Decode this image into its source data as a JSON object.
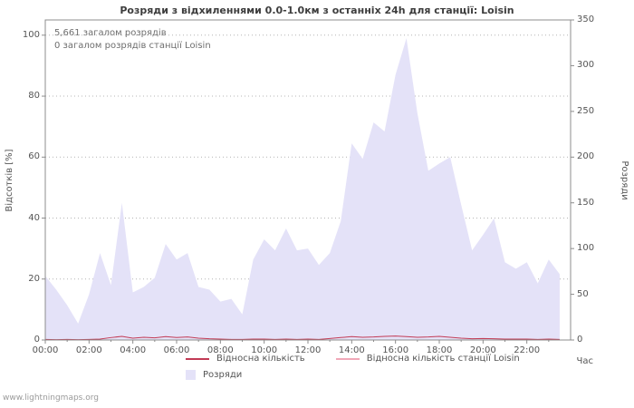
{
  "watermark": "www.lightningmaps.org",
  "chart_data": {
    "type": "area",
    "title": "Розряди з відхиленнями 0.0-1.0км з останніх 24h для станції: Loisin",
    "annotations": [
      "5,661 загалом розрядів",
      "0 загалом розрядів станції Loisin"
    ],
    "x_axis": {
      "label": "Час",
      "ticks": [
        "00:00",
        "02:00",
        "04:00",
        "06:00",
        "08:00",
        "10:00",
        "12:00",
        "14:00",
        "16:00",
        "18:00",
        "20:00",
        "22:00"
      ],
      "hours_max": 24
    },
    "left_axis": {
      "label": "Відсотків [%]",
      "ticks": [
        0,
        20,
        40,
        60,
        80,
        100
      ],
      "plot_max": 105
    },
    "right_axis": {
      "label": "Розряди",
      "ticks": [
        0,
        50,
        100,
        150,
        200,
        250,
        300,
        350
      ],
      "max": 350
    },
    "grid": "horizontal-dotted",
    "legend_position": "bottom",
    "frame_color": "#8c8c8c",
    "grid_color": "#b4b4b4",
    "x": [
      "00:00",
      "00:30",
      "01:00",
      "01:30",
      "02:00",
      "02:30",
      "03:00",
      "03:30",
      "04:00",
      "04:30",
      "05:00",
      "05:30",
      "06:00",
      "06:30",
      "07:00",
      "07:30",
      "08:00",
      "08:30",
      "09:00",
      "09:30",
      "10:00",
      "10:30",
      "11:00",
      "11:30",
      "12:00",
      "12:30",
      "13:00",
      "13:30",
      "14:00",
      "14:30",
      "15:00",
      "15:30",
      "16:00",
      "16:30",
      "17:00",
      "17:30",
      "18:00",
      "18:30",
      "19:00",
      "19:30",
      "20:00",
      "20:30",
      "21:00",
      "21:30",
      "22:00",
      "22:30",
      "23:00",
      "23:30"
    ],
    "series": [
      {
        "name": "Розряди",
        "type": "area",
        "axis": "right",
        "color": "#e4e2f8",
        "values": [
          70,
          55,
          38,
          18,
          50,
          95,
          60,
          150,
          52,
          58,
          68,
          105,
          88,
          95,
          58,
          55,
          42,
          45,
          28,
          88,
          110,
          98,
          122,
          98,
          100,
          82,
          95,
          130,
          215,
          198,
          238,
          228,
          290,
          330,
          248,
          185,
          193,
          200,
          148,
          98,
          115,
          133,
          85,
          78,
          85,
          62,
          88,
          72
        ]
      },
      {
        "name": "Відносна кількість",
        "type": "line",
        "axis": "left",
        "color": "#c23b55",
        "values": [
          0.2,
          0.1,
          0.2,
          0.1,
          0.2,
          0.3,
          0.8,
          1.2,
          0.6,
          0.9,
          0.7,
          1.1,
          0.8,
          1.0,
          0.6,
          0.4,
          0.3,
          0.2,
          0.2,
          0.3,
          0.3,
          0.2,
          0.3,
          0.2,
          0.3,
          0.2,
          0.5,
          0.8,
          1.1,
          0.9,
          1.0,
          1.2,
          1.3,
          1.1,
          0.9,
          1.0,
          1.2,
          0.9,
          0.6,
          0.4,
          0.5,
          0.4,
          0.3,
          0.3,
          0.3,
          0.2,
          0.3,
          0.2
        ]
      },
      {
        "name": "Відносна кількість станції Loisin",
        "type": "line",
        "axis": "left",
        "color": "#f0a8b8",
        "values": [
          0,
          0,
          0,
          0,
          0,
          0,
          0,
          0,
          0,
          0,
          0,
          0,
          0,
          0,
          0,
          0,
          0,
          0,
          0,
          0,
          0,
          0,
          0,
          0,
          0,
          0,
          0,
          0,
          0,
          0,
          0,
          0,
          0,
          0,
          0,
          0,
          0,
          0,
          0,
          0,
          0,
          0,
          0,
          0,
          0,
          0,
          0,
          0
        ]
      }
    ]
  }
}
